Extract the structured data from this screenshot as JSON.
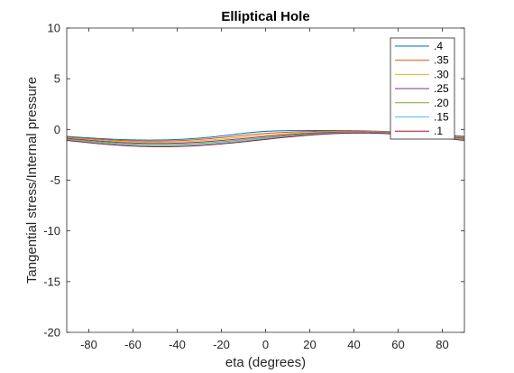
{
  "chart_data": {
    "type": "line",
    "title": "Elliptical Hole",
    "xlabel": "eta (degrees)",
    "ylabel": "Tangential stress/Internal pressure",
    "xlim": [
      -90,
      90
    ],
    "ylim": [
      -20,
      10
    ],
    "xticks": [
      -80,
      -60,
      -40,
      -20,
      0,
      20,
      40,
      60,
      80
    ],
    "yticks": [
      -20,
      -15,
      -10,
      -5,
      0,
      5,
      10
    ],
    "grid": false,
    "legend_position": "top-right",
    "series": [
      {
        "name": ".4",
        "color": "#0072BD",
        "c": 0.4
      },
      {
        "name": ".35",
        "color": "#D95319",
        "c": 0.35
      },
      {
        "name": ".30",
        "color": "#EDB120",
        "c": 0.3
      },
      {
        "name": ".25",
        "color": "#7E2F8E",
        "c": 0.25
      },
      {
        "name": ".20",
        "color": "#77AC30",
        "c": 0.2
      },
      {
        "name": ".15",
        "color": "#4DBEEE",
        "c": 0.15
      },
      {
        "name": ".1",
        "color": "#A2142F",
        "c": 0.1
      }
    ]
  }
}
